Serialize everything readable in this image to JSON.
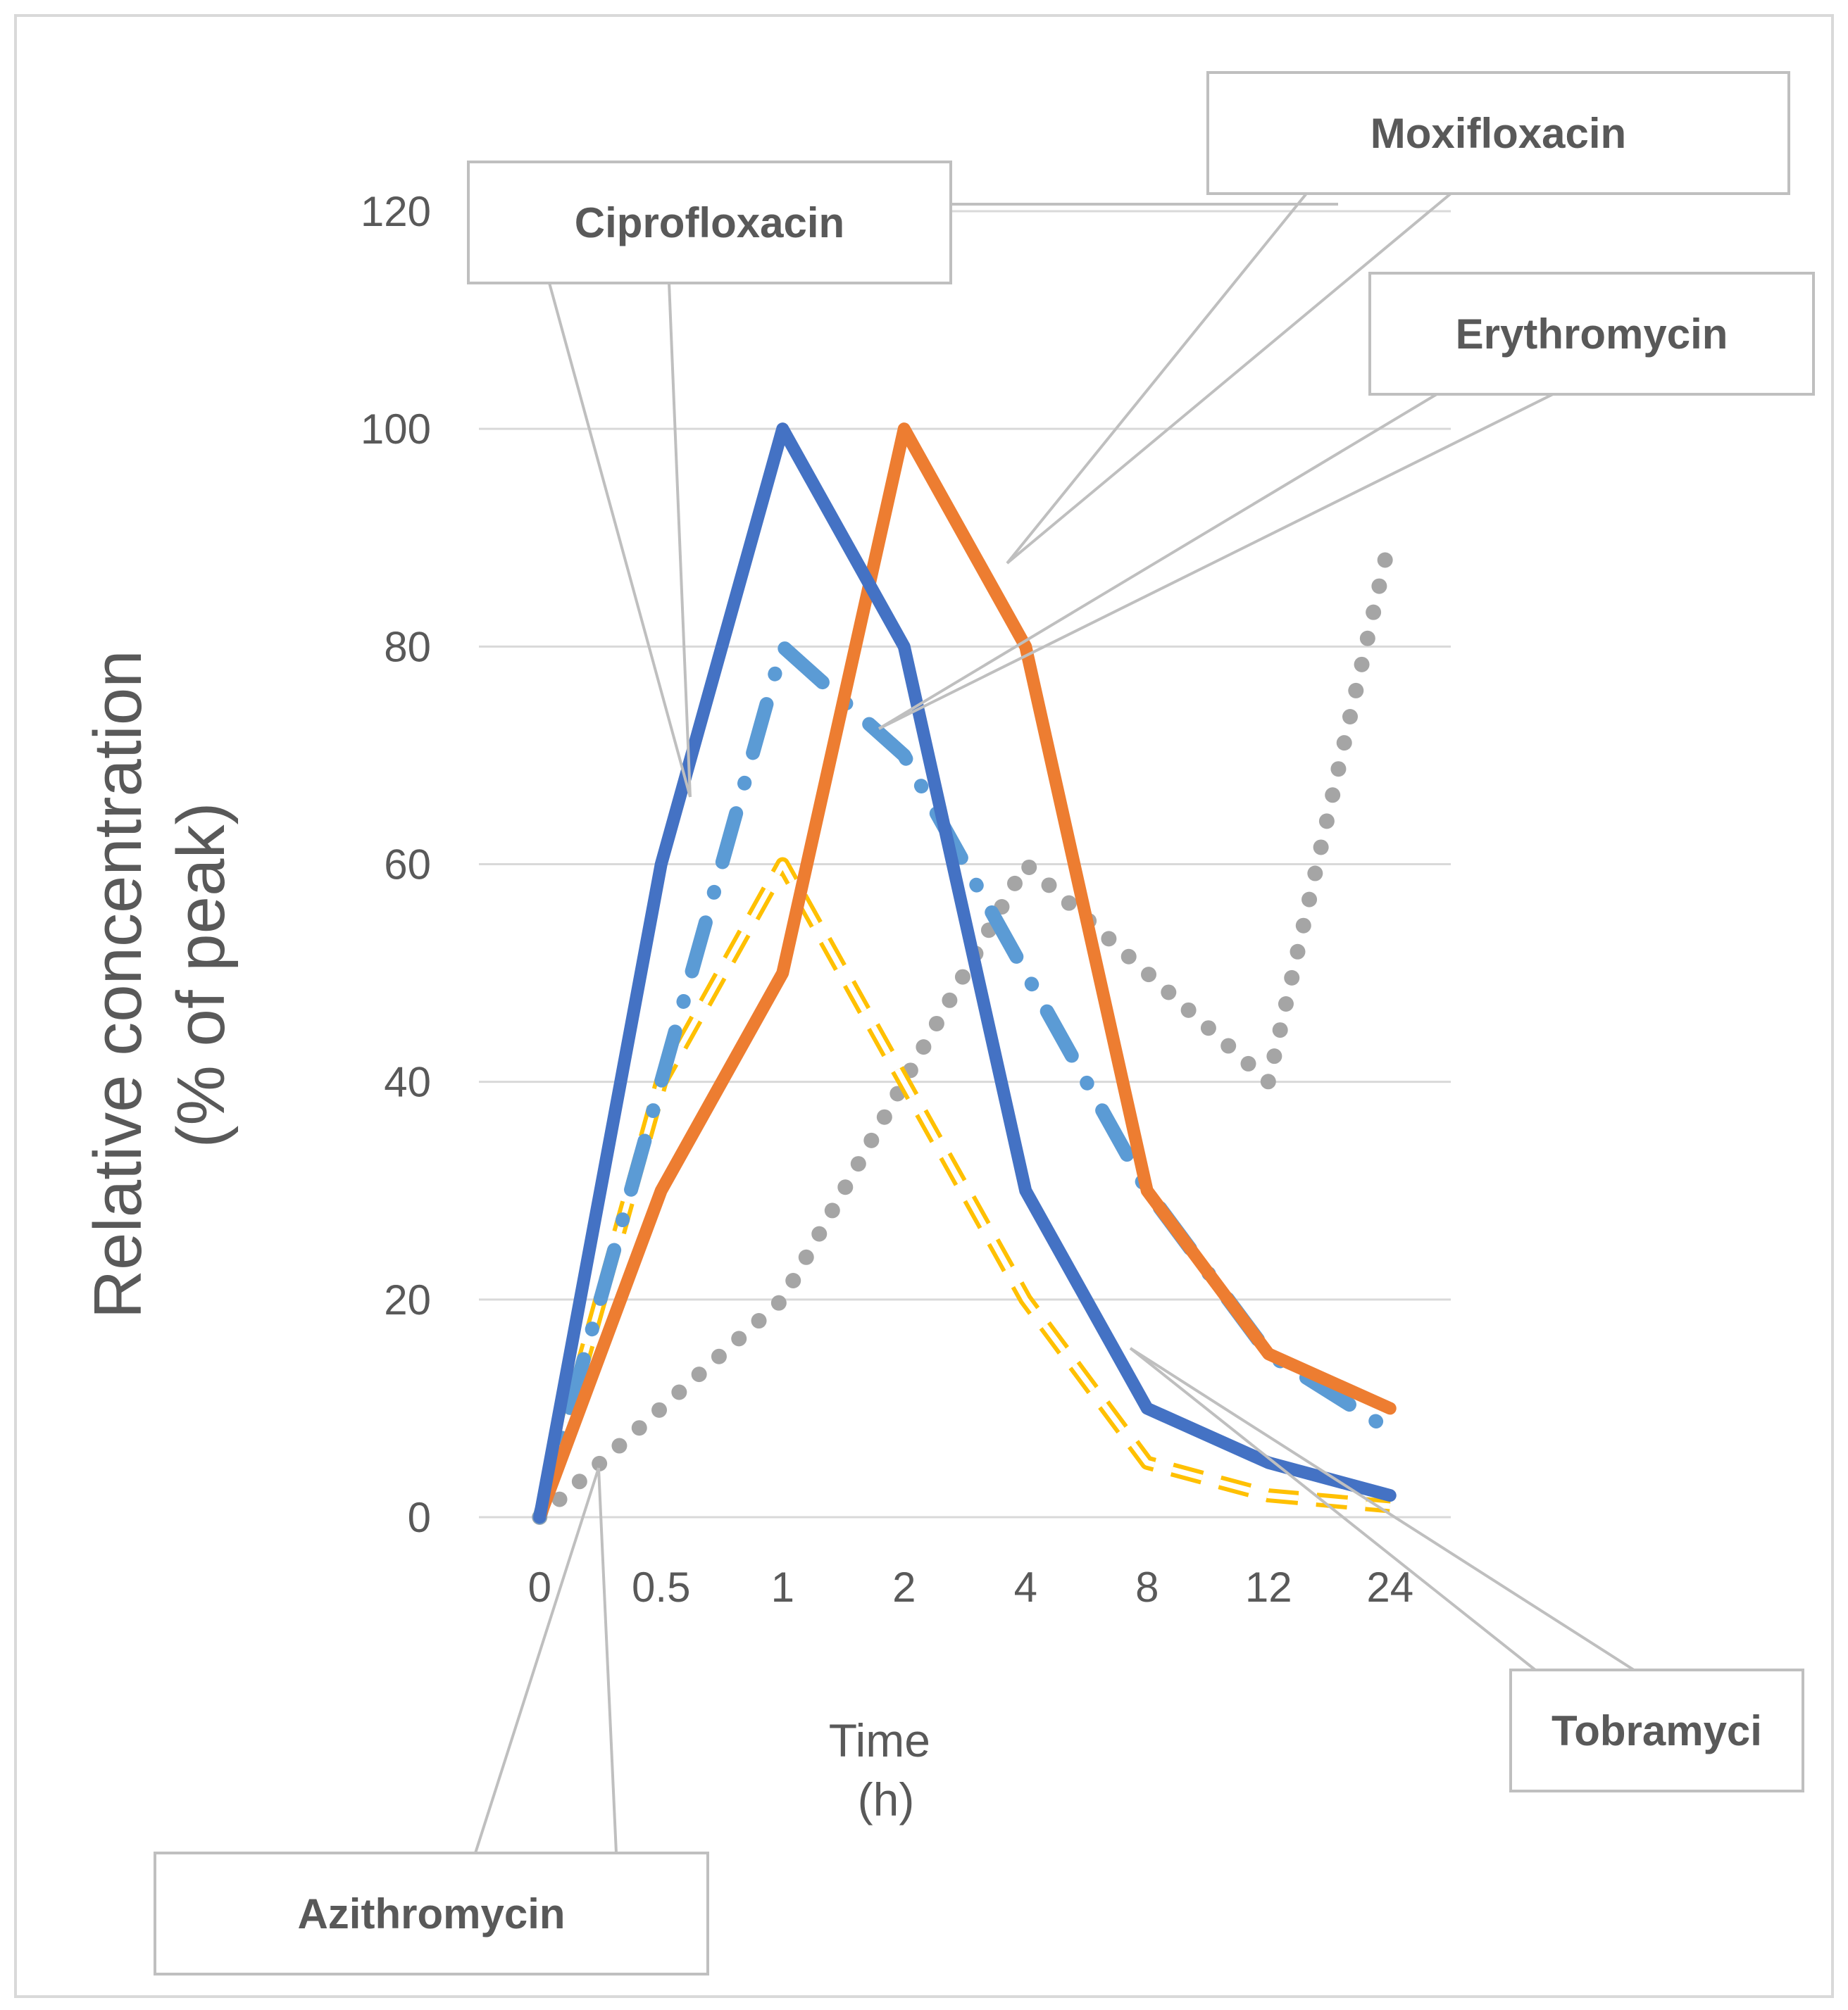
{
  "chart_data": {
    "type": "line",
    "title": "",
    "xlabel_lines": [
      "Time",
      "(h)"
    ],
    "ylabel_lines": [
      "Relative concentration",
      "(% of peak)"
    ],
    "categories": [
      "0",
      "0.5",
      "1",
      "2",
      "4",
      "8",
      "12",
      "24"
    ],
    "ylim": [
      0,
      120
    ],
    "yticks": [
      0,
      20,
      40,
      60,
      80,
      100,
      120
    ],
    "grid": true,
    "series": [
      {
        "name": "Azithromycin",
        "style": "dotted",
        "color": "#a5a5a5",
        "values": [
          0,
          10,
          20,
          40,
          60,
          50,
          40,
          90
        ]
      },
      {
        "name": "Tobramyci",
        "style": "dashed-outline",
        "color": "#ffc000",
        "values": [
          0,
          40,
          60,
          40,
          20,
          5,
          2,
          1
        ]
      },
      {
        "name": "Erythromycin",
        "style": "dash-dot",
        "color": "#5b9bd5",
        "values": [
          0,
          40,
          80,
          70,
          50,
          30,
          15,
          8
        ]
      },
      {
        "name": "Moxifloxacin",
        "style": "solid",
        "color": "#ed7d31",
        "values": [
          0,
          30,
          50,
          100,
          80,
          30,
          15,
          10
        ]
      },
      {
        "name": "Ciprofloxacin",
        "style": "solid",
        "color": "#4472c4",
        "values": [
          0,
          60,
          100,
          80,
          30,
          10,
          5,
          2
        ]
      }
    ],
    "annotations": [
      "Ciprofloxacin",
      "Moxifloxacin",
      "Erythromycin",
      "Tobramyci",
      "Azithromycin"
    ]
  }
}
